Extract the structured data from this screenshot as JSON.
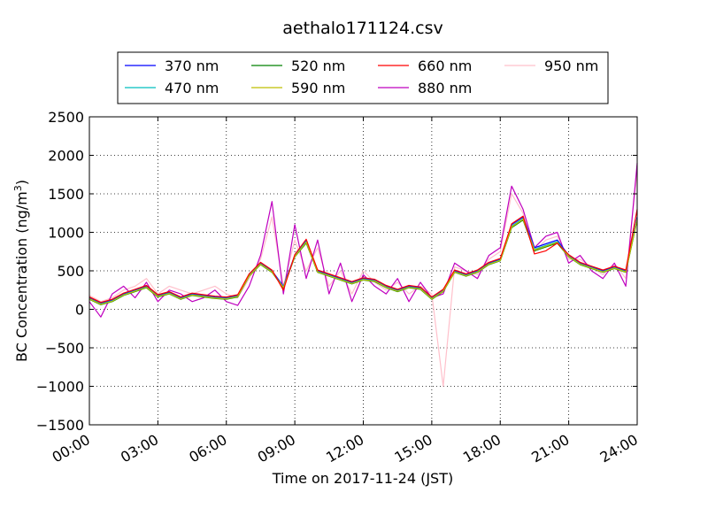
{
  "chart_data": {
    "type": "line",
    "title": "aethalo171124.csv",
    "xlabel": "Time on 2017-11-24 (JST)",
    "ylabel": "BC Concentration (ng/m³)",
    "ylabel_parts": {
      "main": "BC Concentration (ng/m",
      "sup": "3",
      "close": ")"
    },
    "xlim_hours": [
      0,
      24
    ],
    "ylim": [
      -1500,
      2500
    ],
    "x_ticks_hours": [
      0,
      3,
      6,
      9,
      12,
      15,
      18,
      21,
      24
    ],
    "x_tick_labels": [
      "00:00",
      "03:00",
      "06:00",
      "09:00",
      "12:00",
      "15:00",
      "18:00",
      "21:00",
      "24:00"
    ],
    "y_ticks": [
      -1500,
      -1000,
      -500,
      0,
      500,
      1000,
      1500,
      2000,
      2500
    ],
    "y_tick_labels": [
      "−1500",
      "−1000",
      "−500",
      "0",
      "500",
      "1000",
      "1500",
      "2000",
      "2500"
    ],
    "grid": true,
    "legend_position": "top",
    "x_hours": [
      0.0,
      0.5,
      1.0,
      1.5,
      2.0,
      2.5,
      3.0,
      3.5,
      4.0,
      4.5,
      5.0,
      5.5,
      6.0,
      6.5,
      7.0,
      7.5,
      8.0,
      8.5,
      9.0,
      9.5,
      10.0,
      10.5,
      11.0,
      11.5,
      12.0,
      12.5,
      13.0,
      13.5,
      14.0,
      14.5,
      15.0,
      15.5,
      16.0,
      16.5,
      17.0,
      17.5,
      18.0,
      18.5,
      19.0,
      19.5,
      20.0,
      20.5,
      21.0,
      21.5,
      22.0,
      22.5,
      23.0,
      23.5,
      24.0
    ],
    "series": [
      {
        "name": "370 nm",
        "color": "#0000ff",
        "values": [
          150,
          80,
          120,
          200,
          250,
          300,
          180,
          220,
          150,
          200,
          180,
          160,
          150,
          180,
          450,
          600,
          500,
          300,
          700,
          900,
          500,
          450,
          400,
          350,
          400,
          380,
          300,
          250,
          300,
          280,
          150,
          250,
          500,
          450,
          500,
          600,
          650,
          1100,
          1200,
          800,
          850,
          900,
          700,
          600,
          550,
          500,
          550,
          500,
          1200
        ]
      },
      {
        "name": "470 nm",
        "color": "#00bfbf",
        "values": [
          140,
          70,
          110,
          190,
          240,
          290,
          170,
          210,
          140,
          190,
          170,
          150,
          140,
          170,
          440,
          590,
          490,
          290,
          690,
          880,
          490,
          440,
          390,
          340,
          390,
          370,
          290,
          240,
          290,
          270,
          140,
          240,
          490,
          440,
          490,
          590,
          640,
          1080,
          1180,
          780,
          830,
          880,
          690,
          590,
          540,
          490,
          540,
          490,
          1180
        ]
      },
      {
        "name": "520 nm",
        "color": "#008000",
        "values": [
          130,
          60,
          100,
          180,
          230,
          280,
          160,
          200,
          130,
          180,
          160,
          140,
          130,
          160,
          430,
          580,
          480,
          280,
          680,
          860,
          480,
          430,
          380,
          330,
          380,
          360,
          280,
          230,
          280,
          260,
          130,
          230,
          480,
          430,
          480,
          580,
          630,
          1060,
          1160,
          760,
          810,
          860,
          680,
          580,
          530,
          480,
          530,
          480,
          1160
        ]
      },
      {
        "name": "590 nm",
        "color": "#bfbf00",
        "values": [
          135,
          65,
          105,
          185,
          235,
          285,
          165,
          205,
          135,
          185,
          165,
          145,
          135,
          165,
          435,
          585,
          485,
          285,
          685,
          870,
          485,
          435,
          385,
          335,
          385,
          365,
          285,
          235,
          285,
          265,
          135,
          235,
          485,
          435,
          485,
          585,
          635,
          1070,
          1170,
          770,
          820,
          870,
          685,
          585,
          535,
          485,
          535,
          485,
          1170
        ]
      },
      {
        "name": "660 nm",
        "color": "#ff0000",
        "values": [
          160,
          90,
          130,
          210,
          260,
          310,
          190,
          230,
          160,
          210,
          190,
          170,
          160,
          190,
          460,
          610,
          510,
          250,
          710,
          910,
          510,
          460,
          410,
          360,
          410,
          390,
          310,
          260,
          310,
          290,
          160,
          260,
          510,
          460,
          510,
          610,
          660,
          1110,
          1210,
          720,
          760,
          860,
          710,
          610,
          560,
          510,
          560,
          510,
          1300
        ]
      },
      {
        "name": "880 nm",
        "color": "#bf00bf",
        "values": [
          100,
          -100,
          200,
          300,
          150,
          350,
          100,
          250,
          200,
          100,
          150,
          250,
          100,
          50,
          300,
          700,
          1400,
          200,
          1100,
          400,
          900,
          200,
          600,
          100,
          450,
          300,
          200,
          400,
          100,
          350,
          150,
          200,
          600,
          500,
          400,
          700,
          800,
          1600,
          1300,
          800,
          950,
          1000,
          600,
          700,
          500,
          400,
          600,
          300,
          1900
        ]
      },
      {
        "name": "950 nm",
        "color": "#ffc0cb",
        "values": [
          180,
          100,
          150,
          250,
          300,
          400,
          200,
          300,
          250,
          200,
          250,
          300,
          200,
          150,
          400,
          650,
          1200,
          300,
          900,
          500,
          800,
          300,
          500,
          200,
          500,
          350,
          250,
          350,
          200,
          300,
          200,
          -1000,
          550,
          500,
          450,
          650,
          750,
          1500,
          1250,
          750,
          900,
          950,
          650,
          650,
          550,
          450,
          600,
          400,
          1800
        ]
      }
    ]
  }
}
